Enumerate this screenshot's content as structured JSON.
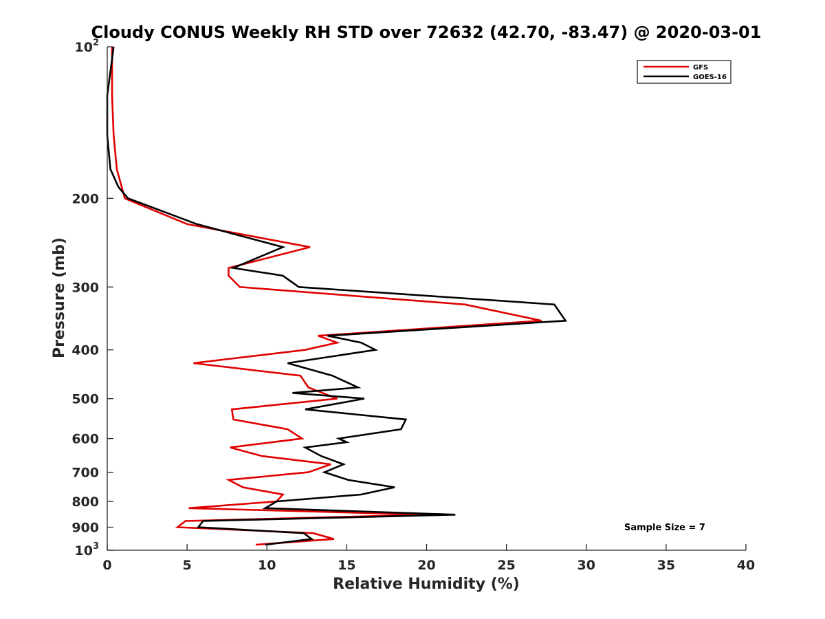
{
  "chart_data": {
    "type": "line",
    "title": "Cloudy CONUS Weekly RH STD over 72632 (42.70, -83.47) @ 2020-03-01",
    "xlabel": "Relative Humidity (%)",
    "ylabel": "Pressure (mb)",
    "xlim": [
      0,
      40
    ],
    "ylim": [
      100,
      1000
    ],
    "yscale": "log",
    "y_reversed": true,
    "grid": false,
    "legend_position": "top-right",
    "xticks": [
      0,
      5,
      10,
      15,
      20,
      25,
      30,
      35,
      40
    ],
    "xtick_labels": [
      "0",
      "5",
      "10",
      "15",
      "20",
      "25",
      "30",
      "35",
      "40"
    ],
    "yticks": [
      {
        "value": 100,
        "base": "10",
        "exp": "2"
      },
      {
        "value": 200,
        "base": "200",
        "exp": ""
      },
      {
        "value": 300,
        "base": "300",
        "exp": ""
      },
      {
        "value": 400,
        "base": "400",
        "exp": ""
      },
      {
        "value": 500,
        "base": "500",
        "exp": ""
      },
      {
        "value": 600,
        "base": "600",
        "exp": ""
      },
      {
        "value": 700,
        "base": "700",
        "exp": ""
      },
      {
        "value": 800,
        "base": "800",
        "exp": ""
      },
      {
        "value": 900,
        "base": "900",
        "exp": ""
      },
      {
        "value": 1000,
        "base": "10",
        "exp": "3"
      }
    ],
    "annotation": "Sample Size = 7",
    "series": [
      {
        "name": "GFS",
        "color": "#e00000",
        "points": [
          [
            0.3,
            100
          ],
          [
            0.3,
            125
          ],
          [
            0.4,
            150
          ],
          [
            0.6,
            175
          ],
          [
            1.1,
            200
          ],
          [
            5.0,
            225
          ],
          [
            12.7,
            250
          ],
          [
            7.6,
            275
          ],
          [
            7.6,
            285
          ],
          [
            8.3,
            300
          ],
          [
            22.4,
            325
          ],
          [
            27.2,
            350
          ],
          [
            13.2,
            375
          ],
          [
            14.4,
            387
          ],
          [
            12.4,
            400
          ],
          [
            5.4,
            425
          ],
          [
            12.1,
            450
          ],
          [
            12.6,
            475
          ],
          [
            14.4,
            500
          ],
          [
            7.8,
            525
          ],
          [
            7.9,
            550
          ],
          [
            11.3,
            575
          ],
          [
            12.2,
            600
          ],
          [
            7.7,
            625
          ],
          [
            9.7,
            650
          ],
          [
            14.0,
            675
          ],
          [
            12.6,
            700
          ],
          [
            7.6,
            725
          ],
          [
            8.5,
            750
          ],
          [
            11.0,
            775
          ],
          [
            10.6,
            800
          ],
          [
            5.1,
            825
          ],
          [
            20.0,
            850
          ],
          [
            4.9,
            875
          ],
          [
            4.4,
            900
          ],
          [
            12.9,
            925
          ],
          [
            14.2,
            950
          ],
          [
            9.3,
            975
          ]
        ]
      },
      {
        "name": "GOES-16",
        "color": "#000000",
        "points": [
          [
            0.4,
            100
          ],
          [
            0.0,
            125
          ],
          [
            0.0,
            150
          ],
          [
            0.2,
            175
          ],
          [
            0.7,
            190
          ],
          [
            1.3,
            200
          ],
          [
            5.6,
            225
          ],
          [
            11.0,
            250
          ],
          [
            7.9,
            275
          ],
          [
            11.0,
            285
          ],
          [
            12.0,
            300
          ],
          [
            28.0,
            325
          ],
          [
            28.7,
            350
          ],
          [
            13.8,
            375
          ],
          [
            15.9,
            387
          ],
          [
            16.8,
            400
          ],
          [
            11.3,
            425
          ],
          [
            14.1,
            450
          ],
          [
            15.7,
            475
          ],
          [
            11.6,
            487
          ],
          [
            16.1,
            500
          ],
          [
            12.4,
            525
          ],
          [
            18.7,
            550
          ],
          [
            18.4,
            575
          ],
          [
            14.5,
            600
          ],
          [
            15.0,
            610
          ],
          [
            12.4,
            625
          ],
          [
            13.4,
            650
          ],
          [
            14.8,
            675
          ],
          [
            13.6,
            700
          ],
          [
            15.1,
            725
          ],
          [
            18.0,
            750
          ],
          [
            15.9,
            775
          ],
          [
            10.6,
            800
          ],
          [
            9.9,
            825
          ],
          [
            21.8,
            850
          ],
          [
            6.0,
            875
          ],
          [
            5.7,
            900
          ],
          [
            12.3,
            925
          ],
          [
            12.8,
            950
          ],
          [
            9.9,
            975
          ]
        ]
      }
    ]
  }
}
